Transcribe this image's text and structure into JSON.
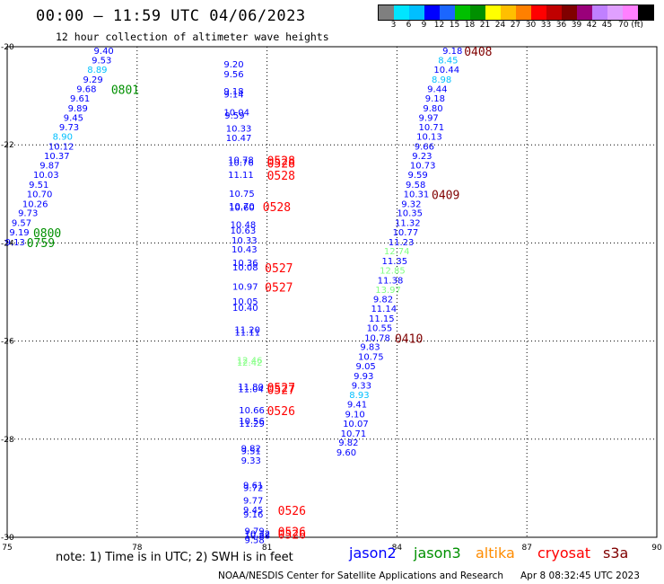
{
  "header": {
    "title": "00:00 — 11:59 UTC 04/06/2023",
    "subtitle": "12 hour collection of altimeter wave heights"
  },
  "scale": {
    "colors": [
      "#7f7f7f",
      "#00e5ff",
      "#00bfff",
      "#0000ff",
      "#1b66ff",
      "#00c000",
      "#009000",
      "#ffff00",
      "#ffbf00",
      "#ff8000",
      "#ff0000",
      "#c00000",
      "#800000",
      "#9a007a",
      "#c080ff",
      "#e0a0ff",
      "#ff80ff",
      "#000000"
    ],
    "labels": [
      "3",
      "6",
      "9",
      "12",
      "15",
      "18",
      "21",
      "24",
      "27",
      "30",
      "33",
      "36",
      "39",
      "42",
      "45",
      "70 (ft)"
    ]
  },
  "map": {
    "lon_range": [
      75,
      90
    ],
    "lat_range": [
      -20,
      -30
    ],
    "lon_ticks": [
      "75",
      "78",
      "81",
      "84",
      "87",
      "90"
    ],
    "lat_ticks": [
      "-20",
      "-22",
      "-24",
      "-26",
      "-28",
      "-30"
    ],
    "gridlines": "dotted"
  },
  "observations": [
    {
      "lon": 77.0,
      "lat": -20.09,
      "text": "9.40",
      "color": "#0000ff"
    },
    {
      "lon": 76.95,
      "lat": -20.28,
      "text": "9.53",
      "color": "#0000ff"
    },
    {
      "lon": 76.85,
      "lat": -20.48,
      "text": "8.89",
      "color": "#00bfff"
    },
    {
      "lon": 76.75,
      "lat": -20.68,
      "text": "9.29",
      "color": "#0000ff"
    },
    {
      "lon": 76.6,
      "lat": -20.87,
      "text": "9.68",
      "color": "#0000ff"
    },
    {
      "lon": 76.45,
      "lat": -21.06,
      "text": "9.61",
      "color": "#0000ff"
    },
    {
      "lon": 76.4,
      "lat": -21.26,
      "text": "9.89",
      "color": "#0000ff"
    },
    {
      "lon": 76.3,
      "lat": -21.46,
      "text": "9.45",
      "color": "#0000ff"
    },
    {
      "lon": 76.2,
      "lat": -21.65,
      "text": "9.73",
      "color": "#0000ff"
    },
    {
      "lon": 76.05,
      "lat": -21.84,
      "text": "8.90",
      "color": "#00bfff"
    },
    {
      "lon": 75.95,
      "lat": -22.04,
      "text": "10.12",
      "color": "#0000ff"
    },
    {
      "lon": 75.85,
      "lat": -22.23,
      "text": "10.37",
      "color": "#0000ff"
    },
    {
      "lon": 75.75,
      "lat": -22.43,
      "text": "9.87",
      "color": "#0000ff"
    },
    {
      "lon": 75.6,
      "lat": -22.62,
      "text": "10.03",
      "color": "#0000ff"
    },
    {
      "lon": 75.5,
      "lat": -22.82,
      "text": "9.51",
      "color": "#0000ff"
    },
    {
      "lon": 75.45,
      "lat": -23.01,
      "text": "10.70",
      "color": "#0000ff"
    },
    {
      "lon": 75.35,
      "lat": -23.21,
      "text": "10.26",
      "color": "#0000ff"
    },
    {
      "lon": 75.25,
      "lat": -23.4,
      "text": "9.73",
      "color": "#0000ff"
    },
    {
      "lon": 75.1,
      "lat": -23.6,
      "text": "9.57",
      "color": "#0000ff"
    },
    {
      "lon": 75.05,
      "lat": -23.79,
      "text": "9.19",
      "color": "#0000ff"
    },
    {
      "lon": 74.95,
      "lat": -23.99,
      "text": "9.13",
      "color": "#0000ff"
    },
    {
      "lon": 80.0,
      "lat": -20.37,
      "text": "9.20",
      "color": "#0000ff"
    },
    {
      "lon": 80.0,
      "lat": -20.57,
      "text": "9.56",
      "color": "#0000ff"
    },
    {
      "lon": 80.0,
      "lat": -20.92,
      "text": "9.18",
      "color": "#0000ff"
    },
    {
      "lon": 80.0,
      "lat": -20.98,
      "text": "9.14",
      "color": "#0000ff"
    },
    {
      "lon": 80.0,
      "lat": -21.35,
      "text": "10.04",
      "color": "#0000ff"
    },
    {
      "lon": 80.02,
      "lat": -21.41,
      "text": "9.59",
      "color": "#0000ff"
    },
    {
      "lon": 80.05,
      "lat": -21.68,
      "text": "10.33",
      "color": "#0000ff"
    },
    {
      "lon": 80.05,
      "lat": -21.87,
      "text": "10.47",
      "color": "#0000ff"
    },
    {
      "lon": 80.1,
      "lat": -22.32,
      "text": "10.78",
      "color": "#0000ff"
    },
    {
      "lon": 80.1,
      "lat": -22.37,
      "text": "10.76",
      "color": "#0000ff"
    },
    {
      "lon": 80.1,
      "lat": -22.62,
      "text": "11.11",
      "color": "#0000ff"
    },
    {
      "lon": 80.12,
      "lat": -23.0,
      "text": "10.75",
      "color": "#0000ff"
    },
    {
      "lon": 80.12,
      "lat": -23.26,
      "text": "10.70",
      "color": "#0000ff"
    },
    {
      "lon": 80.12,
      "lat": -23.29,
      "text": "10.60",
      "color": "#0000ff"
    },
    {
      "lon": 80.15,
      "lat": -23.64,
      "text": "10.48",
      "color": "#0000ff"
    },
    {
      "lon": 80.15,
      "lat": -23.75,
      "text": "10.63",
      "color": "#0000ff"
    },
    {
      "lon": 80.18,
      "lat": -23.96,
      "text": "10.33",
      "color": "#0000ff"
    },
    {
      "lon": 80.18,
      "lat": -24.14,
      "text": "10.43",
      "color": "#0000ff"
    },
    {
      "lon": 80.2,
      "lat": -24.41,
      "text": "10.36",
      "color": "#0000ff"
    },
    {
      "lon": 80.2,
      "lat": -24.51,
      "text": "10.08",
      "color": "#0000ff"
    },
    {
      "lon": 80.2,
      "lat": -24.9,
      "text": "10.97",
      "color": "#0000ff"
    },
    {
      "lon": 80.2,
      "lat": -25.2,
      "text": "10.05",
      "color": "#0000ff"
    },
    {
      "lon": 80.2,
      "lat": -25.33,
      "text": "10.40",
      "color": "#0000ff"
    },
    {
      "lon": 80.25,
      "lat": -25.78,
      "text": "11.20",
      "color": "#0000ff"
    },
    {
      "lon": 80.25,
      "lat": -25.83,
      "text": "11.11",
      "color": "#0000ff"
    },
    {
      "lon": 80.3,
      "lat": -26.4,
      "text": "12.46",
      "color": "#80ff80"
    },
    {
      "lon": 80.3,
      "lat": -26.45,
      "text": "12.42",
      "color": "#80ff80"
    },
    {
      "lon": 80.33,
      "lat": -26.94,
      "text": "11.80",
      "color": "#0000ff"
    },
    {
      "lon": 80.33,
      "lat": -26.99,
      "text": "11.04",
      "color": "#0000ff"
    },
    {
      "lon": 80.35,
      "lat": -27.42,
      "text": "10.66",
      "color": "#0000ff"
    },
    {
      "lon": 80.35,
      "lat": -27.64,
      "text": "10.56",
      "color": "#0000ff"
    },
    {
      "lon": 80.35,
      "lat": -27.69,
      "text": "11.29",
      "color": "#0000ff"
    },
    {
      "lon": 80.4,
      "lat": -28.2,
      "text": "9.82",
      "color": "#0000ff"
    },
    {
      "lon": 80.4,
      "lat": -28.25,
      "text": "9.51",
      "color": "#0000ff"
    },
    {
      "lon": 80.4,
      "lat": -28.44,
      "text": "9.33",
      "color": "#0000ff"
    },
    {
      "lon": 80.45,
      "lat": -28.95,
      "text": "9.61",
      "color": "#0000ff"
    },
    {
      "lon": 80.45,
      "lat": -29.0,
      "text": "9.72",
      "color": "#0000ff"
    },
    {
      "lon": 80.45,
      "lat": -29.26,
      "text": "9.77",
      "color": "#0000ff"
    },
    {
      "lon": 80.45,
      "lat": -29.45,
      "text": "9.45",
      "color": "#0000ff"
    },
    {
      "lon": 80.45,
      "lat": -29.54,
      "text": "9.16",
      "color": "#0000ff"
    },
    {
      "lon": 80.48,
      "lat": -29.88,
      "text": "9.79",
      "color": "#0000ff"
    },
    {
      "lon": 80.48,
      "lat": -29.94,
      "text": "10.32",
      "color": "#0000ff"
    },
    {
      "lon": 80.48,
      "lat": -29.97,
      "text": "10.88",
      "color": "#0000ff"
    },
    {
      "lon": 80.48,
      "lat": -30.06,
      "text": "9.58",
      "color": "#0000ff"
    },
    {
      "lon": 85.05,
      "lat": -20.09,
      "text": "9.18",
      "color": "#0000ff"
    },
    {
      "lon": 84.95,
      "lat": -20.28,
      "text": "8.45",
      "color": "#00bfff"
    },
    {
      "lon": 84.85,
      "lat": -20.48,
      "text": "10.44",
      "color": "#0000ff"
    },
    {
      "lon": 84.8,
      "lat": -20.68,
      "text": "8.98",
      "color": "#00bfff"
    },
    {
      "lon": 84.7,
      "lat": -20.87,
      "text": "9.44",
      "color": "#0000ff"
    },
    {
      "lon": 84.65,
      "lat": -21.06,
      "text": "9.18",
      "color": "#0000ff"
    },
    {
      "lon": 84.6,
      "lat": -21.26,
      "text": "9.80",
      "color": "#0000ff"
    },
    {
      "lon": 84.5,
      "lat": -21.46,
      "text": "9.97",
      "color": "#0000ff"
    },
    {
      "lon": 84.5,
      "lat": -21.65,
      "text": "10.71",
      "color": "#0000ff"
    },
    {
      "lon": 84.45,
      "lat": -21.84,
      "text": "10.13",
      "color": "#0000ff"
    },
    {
      "lon": 84.4,
      "lat": -22.04,
      "text": "9.66",
      "color": "#0000ff"
    },
    {
      "lon": 84.35,
      "lat": -22.23,
      "text": "9.23",
      "color": "#0000ff"
    },
    {
      "lon": 84.3,
      "lat": -22.43,
      "text": "10.73",
      "color": "#0000ff"
    },
    {
      "lon": 84.25,
      "lat": -22.62,
      "text": "9.59",
      "color": "#0000ff"
    },
    {
      "lon": 84.2,
      "lat": -22.82,
      "text": "9.58",
      "color": "#0000ff"
    },
    {
      "lon": 84.15,
      "lat": -23.01,
      "text": "10.31",
      "color": "#0000ff"
    },
    {
      "lon": 84.1,
      "lat": -23.21,
      "text": "9.32",
      "color": "#0000ff"
    },
    {
      "lon": 84.0,
      "lat": -23.4,
      "text": "10.35",
      "color": "#0000ff"
    },
    {
      "lon": 83.95,
      "lat": -23.6,
      "text": "11.32",
      "color": "#0000ff"
    },
    {
      "lon": 83.9,
      "lat": -23.79,
      "text": "10.77",
      "color": "#0000ff"
    },
    {
      "lon": 83.8,
      "lat": -23.99,
      "text": "11.23",
      "color": "#0000ff"
    },
    {
      "lon": 83.7,
      "lat": -24.18,
      "text": "12.74",
      "color": "#80ff80"
    },
    {
      "lon": 83.65,
      "lat": -24.38,
      "text": "11.35",
      "color": "#0000ff"
    },
    {
      "lon": 83.6,
      "lat": -24.57,
      "text": "12.85",
      "color": "#80ff80"
    },
    {
      "lon": 83.55,
      "lat": -24.77,
      "text": "11.38",
      "color": "#0000ff"
    },
    {
      "lon": 83.5,
      "lat": -24.96,
      "text": "13.97",
      "color": "#80ff80"
    },
    {
      "lon": 83.45,
      "lat": -25.16,
      "text": "9.82",
      "color": "#0000ff"
    },
    {
      "lon": 83.4,
      "lat": -25.35,
      "text": "11.14",
      "color": "#0000ff"
    },
    {
      "lon": 83.35,
      "lat": -25.55,
      "text": "11.15",
      "color": "#0000ff"
    },
    {
      "lon": 83.3,
      "lat": -25.74,
      "text": "10.55",
      "color": "#0000ff"
    },
    {
      "lon": 83.25,
      "lat": -25.94,
      "text": "10.78",
      "color": "#0000ff"
    },
    {
      "lon": 83.15,
      "lat": -26.13,
      "text": "9.83",
      "color": "#0000ff"
    },
    {
      "lon": 83.1,
      "lat": -26.33,
      "text": "10.75",
      "color": "#0000ff"
    },
    {
      "lon": 83.05,
      "lat": -26.52,
      "text": "9.05",
      "color": "#0000ff"
    },
    {
      "lon": 83.0,
      "lat": -26.72,
      "text": "9.93",
      "color": "#0000ff"
    },
    {
      "lon": 82.95,
      "lat": -26.91,
      "text": "9.33",
      "color": "#0000ff"
    },
    {
      "lon": 82.9,
      "lat": -27.11,
      "text": "8.93",
      "color": "#00bfff"
    },
    {
      "lon": 82.85,
      "lat": -27.3,
      "text": "9.41",
      "color": "#0000ff"
    },
    {
      "lon": 82.8,
      "lat": -27.5,
      "text": "9.10",
      "color": "#0000ff"
    },
    {
      "lon": 82.75,
      "lat": -27.69,
      "text": "10.07",
      "color": "#0000ff"
    },
    {
      "lon": 82.7,
      "lat": -27.89,
      "text": "10.71",
      "color": "#0000ff"
    },
    {
      "lon": 82.65,
      "lat": -28.08,
      "text": "9.82",
      "color": "#0000ff"
    },
    {
      "lon": 82.6,
      "lat": -28.28,
      "text": "9.60",
      "color": "#0000ff"
    }
  ],
  "time_labels": [
    {
      "lon": 85.55,
      "lat": -20.09,
      "text": "0408",
      "color": "#800000"
    },
    {
      "lon": 77.4,
      "lat": -20.87,
      "text": "0801",
      "color": "#009000"
    },
    {
      "lon": 81.0,
      "lat": -22.32,
      "text": "0528",
      "color": "#ff0000"
    },
    {
      "lon": 81.0,
      "lat": -22.37,
      "text": "0528",
      "color": "#ff0000"
    },
    {
      "lon": 81.0,
      "lat": -22.62,
      "text": "0528",
      "color": "#ff0000"
    },
    {
      "lon": 80.9,
      "lat": -23.26,
      "text": "0528",
      "color": "#ff0000"
    },
    {
      "lon": 84.8,
      "lat": -23.01,
      "text": "0409",
      "color": "#800000"
    },
    {
      "lon": 75.6,
      "lat": -23.79,
      "text": "0800",
      "color": "#009000"
    },
    {
      "lon": 75.45,
      "lat": -23.99,
      "text": "0759",
      "color": "#009000"
    },
    {
      "lon": 80.95,
      "lat": -24.51,
      "text": "0527",
      "color": "#ff0000"
    },
    {
      "lon": 80.95,
      "lat": -24.9,
      "text": "0527",
      "color": "#ff0000"
    },
    {
      "lon": 81.0,
      "lat": -26.94,
      "text": "0527",
      "color": "#ff0000"
    },
    {
      "lon": 81.0,
      "lat": -26.99,
      "text": "0527",
      "color": "#ff0000"
    },
    {
      "lon": 81.0,
      "lat": -27.42,
      "text": "0526",
      "color": "#ff0000"
    },
    {
      "lon": 83.95,
      "lat": -25.94,
      "text": "0410",
      "color": "#800000"
    },
    {
      "lon": 81.25,
      "lat": -29.45,
      "text": "0526",
      "color": "#ff0000"
    },
    {
      "lon": 81.25,
      "lat": -29.88,
      "text": "0526",
      "color": "#ff0000"
    },
    {
      "lon": 81.25,
      "lat": -29.94,
      "text": "0526",
      "color": "#ff0000"
    }
  ],
  "footer": {
    "note": "note:  1) Time is in UTC;  2) SWH is in feet",
    "satellites": [
      {
        "name": "jason2",
        "color": "#0000ff"
      },
      {
        "name": "jason3",
        "color": "#009000"
      },
      {
        "name": "altika",
        "color": "#ff8c00"
      },
      {
        "name": "cryosat",
        "color": "#ff0000"
      },
      {
        "name": "s3a",
        "color": "#800000"
      }
    ],
    "credit": "NOAA/NESDIS Center for Satellite Applications and Research",
    "timestamp": "Apr  8 08:32:45 UTC 2023"
  }
}
